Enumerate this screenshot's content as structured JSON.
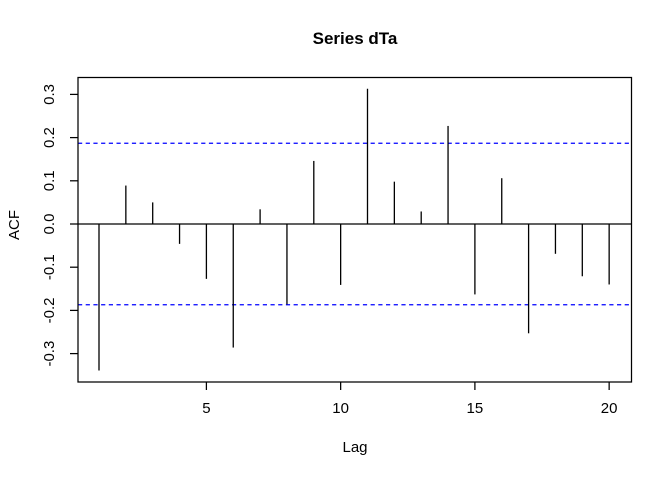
{
  "window": {
    "background_color": "#FFFFFF"
  },
  "chart_data": {
    "type": "bar",
    "subtype": "acf-spike-plot",
    "title": "Series dTa",
    "xlabel": "Lag",
    "ylabel": "ACF",
    "x": [
      1,
      2,
      3,
      4,
      5,
      6,
      7,
      8,
      9,
      10,
      11,
      12,
      13,
      14,
      15,
      16,
      17,
      18,
      19,
      20
    ],
    "values": [
      -0.339,
      0.089,
      0.05,
      -0.046,
      -0.127,
      -0.286,
      0.034,
      -0.186,
      0.146,
      -0.141,
      0.313,
      0.098,
      0.029,
      0.227,
      -0.163,
      0.106,
      -0.253,
      -0.069,
      -0.121,
      -0.14
    ],
    "confidence_bounds": {
      "upper": 0.187,
      "lower": -0.187,
      "line_style": "dashed",
      "color": "#0000FF"
    },
    "x_ticks": [
      5,
      10,
      15,
      20
    ],
    "y_ticks": [
      "0.3",
      "0.2",
      "0.1",
      "0.0",
      "-0.1",
      "-0.2",
      "-0.3"
    ],
    "y_tick_values": [
      0.3,
      0.2,
      0.1,
      0.0,
      -0.1,
      -0.2,
      -0.3
    ],
    "xlim": [
      0.24,
      20.76
    ],
    "ylim": [
      -0.366,
      0.339
    ],
    "grid": false,
    "legend": null,
    "baseline": 0,
    "colors": {
      "spike": "#000000",
      "axis": "#000000",
      "ci_line": "#0000FF",
      "background": "#FFFFFF",
      "text": "#000000"
    }
  }
}
